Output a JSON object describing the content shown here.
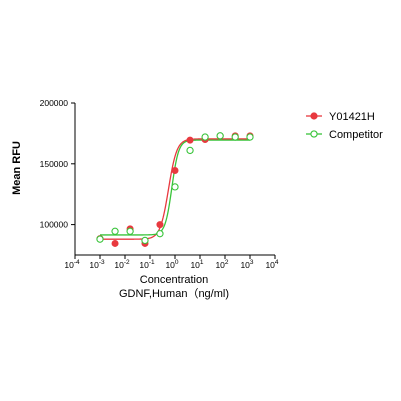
{
  "chart_data": {
    "type": "scatter",
    "xlabel": "Concentration",
    "xlabel2": "GDNF,Human（ng/ml)",
    "ylabel": "Mean RFU",
    "x_scale": "log",
    "xlim": [
      0.0001,
      10000
    ],
    "ylim": [
      75000,
      200000
    ],
    "x_tick_values": [
      0.0001,
      0.001,
      0.01,
      0.1,
      1,
      10,
      100,
      1000,
      10000
    ],
    "x_ticks": [
      {
        "base": "10",
        "exp": "-4"
      },
      {
        "base": "10",
        "exp": "-3"
      },
      {
        "base": "10",
        "exp": "-2"
      },
      {
        "base": "10",
        "exp": "-1"
      },
      {
        "base": "10",
        "exp": "0"
      },
      {
        "base": "10",
        "exp": "1"
      },
      {
        "base": "10",
        "exp": "2"
      },
      {
        "base": "10",
        "exp": "3"
      },
      {
        "base": "10",
        "exp": "4"
      }
    ],
    "y_ticks": [
      {
        "value": 100000,
        "label": "100000"
      },
      {
        "value": 150000,
        "label": "150000"
      },
      {
        "value": 200000,
        "label": "200000"
      }
    ],
    "legend_position": "top-right",
    "series": [
      {
        "name": "Y01421H",
        "color": "#e8393f",
        "marker": "filled-circle",
        "x": [
          0.001,
          0.004,
          0.016,
          0.063,
          0.25,
          1,
          4,
          16,
          64,
          256,
          1000
        ],
        "y": [
          88500,
          84500,
          96500,
          84500,
          100000,
          144500,
          169500,
          170000,
          173000,
          173000,
          173000
        ],
        "fit": {
          "bottom": 88000,
          "top": 170500,
          "ec50": 0.55,
          "hill": 2.6
        }
      },
      {
        "name": "Competitor",
        "color": "#39c43a",
        "marker": "open-circle",
        "x": [
          0.001,
          0.004,
          0.016,
          0.063,
          0.25,
          1,
          4,
          16,
          64,
          256,
          1000
        ],
        "y": [
          88000,
          94500,
          94500,
          87000,
          92500,
          131000,
          161000,
          172000,
          173000,
          172000,
          172000
        ],
        "fit": {
          "bottom": 91500,
          "top": 169500,
          "ec50": 0.75,
          "hill": 3.2
        }
      }
    ]
  }
}
